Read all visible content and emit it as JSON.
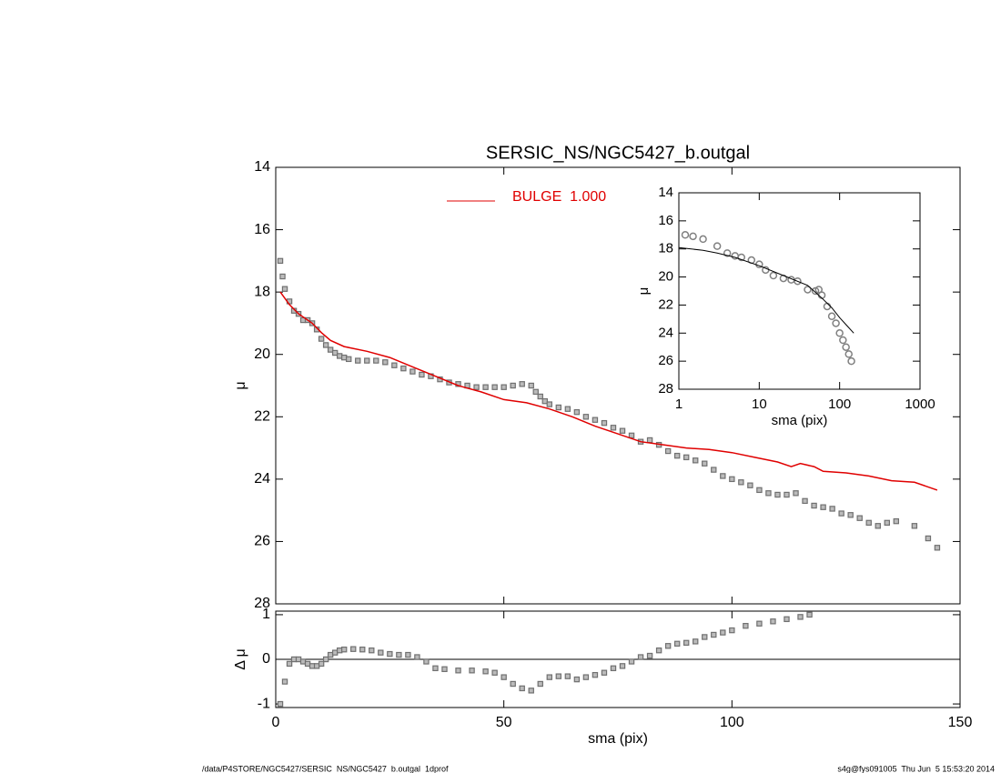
{
  "chart_data": [
    {
      "type": "line",
      "title": "SERSIC_NS/NGC5427_b.outgal",
      "y_label": "μ",
      "xlim": [
        0,
        150
      ],
      "xticks": [
        0,
        50,
        100,
        150
      ],
      "xtick_labels": false,
      "ylim": [
        28,
        14
      ],
      "yticks": [
        14,
        16,
        18,
        20,
        22,
        24,
        26,
        28
      ],
      "legend": "top",
      "series": [
        {
          "marker": "square",
          "color": "#707070",
          "x": [
            1,
            1.5,
            2,
            3,
            4,
            5,
            6,
            7,
            8,
            9,
            10,
            11,
            12,
            13,
            14,
            15,
            16,
            18,
            20,
            22,
            24,
            26,
            28,
            30,
            32,
            34,
            36,
            38,
            40,
            42,
            44,
            46,
            48,
            50,
            52,
            54,
            56,
            57,
            58,
            59,
            60,
            62,
            64,
            66,
            68,
            70,
            72,
            74,
            76,
            78,
            80,
            82,
            84,
            86,
            88,
            90,
            92,
            94,
            96,
            98,
            100,
            102,
            104,
            106,
            108,
            110,
            112,
            114,
            116,
            118,
            120,
            122,
            124,
            126,
            128,
            130,
            132,
            134,
            136,
            140,
            143,
            145
          ],
          "values": [
            17.0,
            17.5,
            17.9,
            18.3,
            18.6,
            18.7,
            18.9,
            18.9,
            19.0,
            19.2,
            19.5,
            19.7,
            19.85,
            19.95,
            20.05,
            20.1,
            20.15,
            20.2,
            20.2,
            20.2,
            20.25,
            20.35,
            20.45,
            20.55,
            20.65,
            20.7,
            20.8,
            20.9,
            20.95,
            21.0,
            21.05,
            21.05,
            21.05,
            21.05,
            21.0,
            20.95,
            21.0,
            21.2,
            21.35,
            21.5,
            21.6,
            21.7,
            21.75,
            21.85,
            22.0,
            22.1,
            22.2,
            22.35,
            22.45,
            22.6,
            22.8,
            22.75,
            22.9,
            23.1,
            23.25,
            23.3,
            23.4,
            23.5,
            23.7,
            23.9,
            24.0,
            24.1,
            24.2,
            24.35,
            24.45,
            24.5,
            24.5,
            24.45,
            24.7,
            24.85,
            24.9,
            24.95,
            25.1,
            25.15,
            25.25,
            25.4,
            25.5,
            25.4,
            25.35,
            25.5,
            25.9,
            26.2
          ]
        },
        {
          "name": "BULGE  1.000",
          "color": "#e00000",
          "x": [
            1,
            3,
            5,
            8,
            10,
            12,
            15,
            20,
            25,
            30,
            35,
            40,
            45,
            50,
            55,
            60,
            65,
            70,
            75,
            80,
            85,
            90,
            95,
            100,
            105,
            110,
            113,
            115,
            118,
            120,
            125,
            130,
            135,
            140,
            145
          ],
          "values": [
            18.0,
            18.4,
            18.7,
            19.0,
            19.3,
            19.55,
            19.75,
            19.9,
            20.1,
            20.4,
            20.7,
            21.0,
            21.2,
            21.45,
            21.55,
            21.75,
            22.0,
            22.3,
            22.55,
            22.8,
            22.9,
            23.0,
            23.05,
            23.15,
            23.3,
            23.45,
            23.6,
            23.5,
            23.6,
            23.75,
            23.8,
            23.9,
            24.05,
            24.1,
            24.35
          ]
        }
      ]
    },
    {
      "type": "scatter",
      "y_label": "Δ μ",
      "x_label": "sma (pix)",
      "xlim": [
        0,
        150
      ],
      "xticks": [
        0,
        50,
        100,
        150
      ],
      "ylim": [
        -1.08,
        1.08
      ],
      "yticks": [
        -1,
        0,
        1
      ],
      "zero_line": true,
      "series": [
        {
          "marker": "square",
          "color": "#707070",
          "x": [
            1,
            2,
            3,
            4,
            5,
            6,
            7,
            8,
            9,
            10,
            11,
            12,
            13,
            14,
            15,
            17,
            19,
            21,
            23,
            25,
            27,
            29,
            31,
            33,
            35,
            37,
            40,
            43,
            46,
            48,
            50,
            52,
            54,
            56,
            58,
            60,
            62,
            64,
            66,
            68,
            70,
            72,
            74,
            76,
            78,
            80,
            82,
            84,
            86,
            88,
            90,
            92,
            94,
            96,
            98,
            100,
            103,
            106,
            109,
            112,
            115,
            117
          ],
          "values": [
            -1.0,
            -0.5,
            -0.1,
            0.0,
            0.0,
            -0.05,
            -0.1,
            -0.15,
            -0.15,
            -0.1,
            0.0,
            0.1,
            0.15,
            0.2,
            0.22,
            0.23,
            0.22,
            0.2,
            0.15,
            0.12,
            0.1,
            0.1,
            0.05,
            -0.05,
            -0.2,
            -0.22,
            -0.25,
            -0.25,
            -0.27,
            -0.3,
            -0.4,
            -0.55,
            -0.65,
            -0.7,
            -0.55,
            -0.4,
            -0.38,
            -0.38,
            -0.45,
            -0.4,
            -0.35,
            -0.3,
            -0.2,
            -0.15,
            -0.05,
            0.05,
            0.08,
            0.2,
            0.3,
            0.35,
            0.37,
            0.4,
            0.5,
            0.55,
            0.6,
            0.65,
            0.75,
            0.8,
            0.85,
            0.9,
            0.95,
            1.0
          ]
        }
      ]
    },
    {
      "type": "line",
      "y_label": "μ",
      "x_label": "sma (pix)",
      "xlog": true,
      "xlim": [
        1,
        1000
      ],
      "xticks": [
        1,
        10,
        100,
        1000
      ],
      "ylim": [
        28,
        14
      ],
      "yticks": [
        14,
        16,
        18,
        20,
        22,
        24,
        26,
        28
      ],
      "series": [
        {
          "marker": "circle",
          "color": "#808080",
          "x": [
            1.2,
            1.5,
            2,
            3,
            4,
            5,
            6,
            8,
            10,
            12,
            15,
            20,
            25,
            30,
            40,
            50,
            55,
            60,
            70,
            80,
            90,
            100,
            110,
            120,
            130,
            140
          ],
          "values": [
            17.0,
            17.1,
            17.3,
            17.8,
            18.3,
            18.5,
            18.6,
            18.8,
            19.1,
            19.5,
            19.9,
            20.1,
            20.2,
            20.3,
            20.9,
            21.0,
            20.9,
            21.3,
            22.1,
            22.8,
            23.3,
            24.0,
            24.5,
            25.0,
            25.5,
            26.0
          ]
        },
        {
          "color": "#000000",
          "x": [
            1,
            2,
            3,
            5,
            10,
            20,
            40,
            60,
            80,
            100,
            120,
            150
          ],
          "values": [
            17.9,
            18.1,
            18.3,
            18.6,
            19.2,
            19.9,
            20.6,
            21.5,
            22.2,
            22.9,
            23.4,
            24.0
          ]
        }
      ]
    }
  ],
  "footer": {
    "left": "/data/P4STORE/NGC5427/SERSIC_NS/NGC5427_b.outgal_1dprof",
    "right": "s4g@fys091005  Thu Jun  5 15:53:20 2014"
  }
}
